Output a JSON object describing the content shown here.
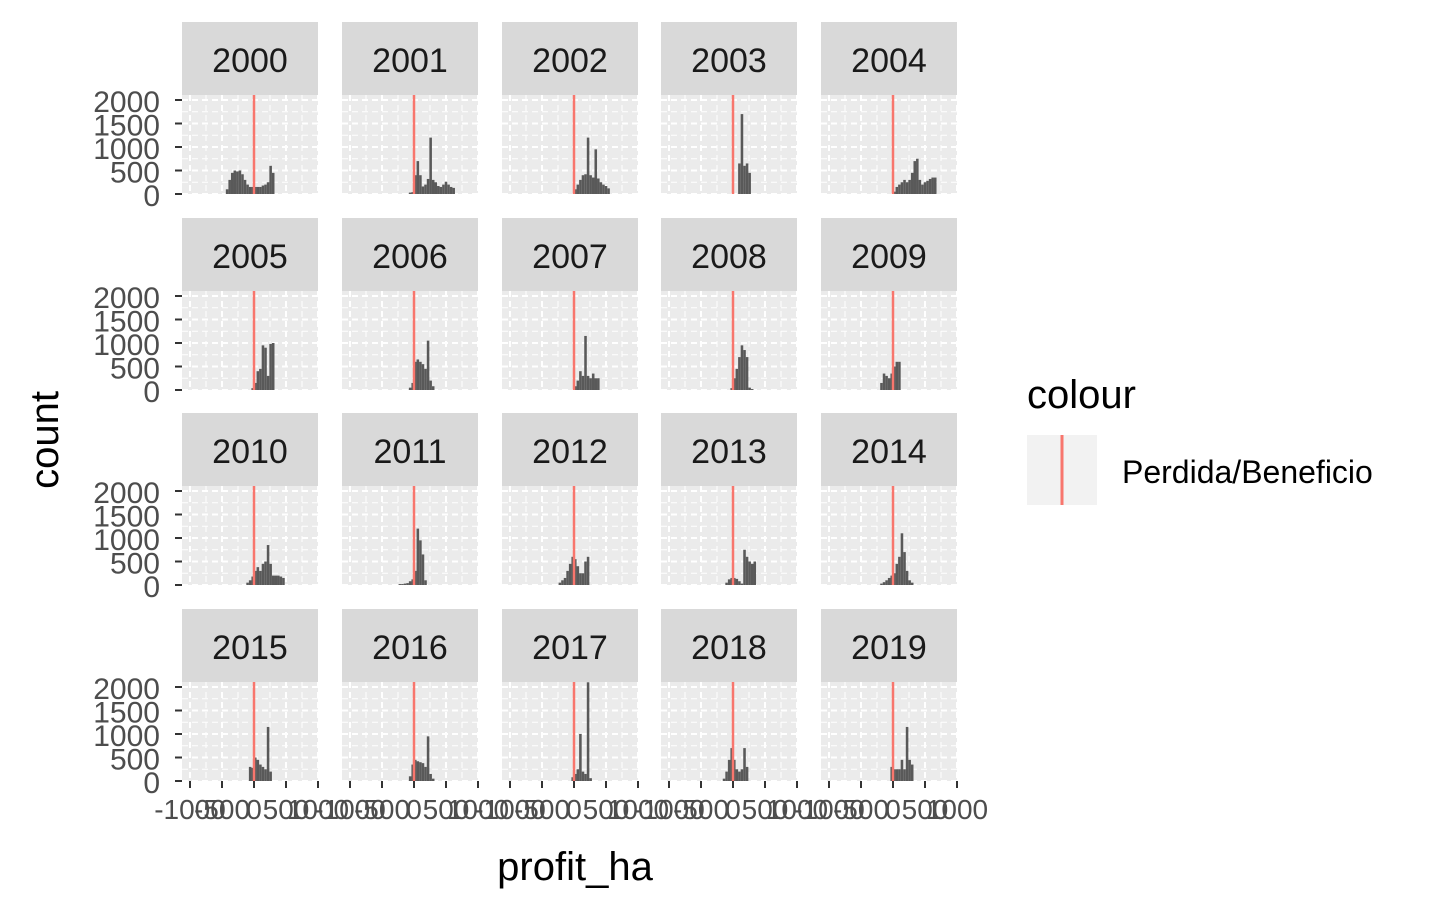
{
  "chart_data": {
    "type": "bar",
    "chart_kind": "faceted histogram",
    "x_label": "profit_ha",
    "y_label": "count",
    "x_tick_labels": [
      "-1000",
      "-500",
      "0",
      "500",
      "1000"
    ],
    "x_range": [
      -1000,
      1000
    ],
    "y_tick_labels": [
      "0",
      "500",
      "1000",
      "1500",
      "2000"
    ],
    "y_range": [
      0,
      2000
    ],
    "grid": true,
    "reference_line": {
      "x": 0,
      "color": "#F8766D"
    },
    "bin_width": 40,
    "legend": {
      "title": "colour",
      "position": "right",
      "items": [
        {
          "label": "Perdida/Beneficio",
          "color": "#F8766D"
        }
      ]
    },
    "bar_color": "#595959",
    "facets": [
      {
        "label": "2000",
        "bins": [
          [
            -420,
            100
          ],
          [
            -380,
            300
          ],
          [
            -340,
            450
          ],
          [
            -300,
            500
          ],
          [
            -260,
            480
          ],
          [
            -220,
            500
          ],
          [
            -180,
            420
          ],
          [
            -140,
            300
          ],
          [
            -100,
            200
          ],
          [
            -60,
            150
          ],
          [
            -20,
            150
          ],
          [
            20,
            150
          ],
          [
            60,
            150
          ],
          [
            100,
            150
          ],
          [
            140,
            180
          ],
          [
            180,
            200
          ],
          [
            220,
            250
          ],
          [
            260,
            600
          ],
          [
            300,
            450
          ]
        ]
      },
      {
        "label": "2001",
        "bins": [
          [
            -60,
            30
          ],
          [
            -20,
            40
          ],
          [
            20,
            400
          ],
          [
            60,
            700
          ],
          [
            100,
            400
          ],
          [
            140,
            160
          ],
          [
            180,
            200
          ],
          [
            220,
            320
          ],
          [
            260,
            1200
          ],
          [
            300,
            300
          ],
          [
            340,
            250
          ],
          [
            380,
            170
          ],
          [
            420,
            150
          ],
          [
            460,
            200
          ],
          [
            500,
            260
          ],
          [
            540,
            200
          ],
          [
            580,
            150
          ],
          [
            620,
            130
          ]
        ]
      },
      {
        "label": "2002",
        "bins": [
          [
            20,
            100
          ],
          [
            60,
            200
          ],
          [
            100,
            300
          ],
          [
            140,
            400
          ],
          [
            180,
            420
          ],
          [
            220,
            1200
          ],
          [
            260,
            400
          ],
          [
            300,
            350
          ],
          [
            340,
            950
          ],
          [
            380,
            330
          ],
          [
            420,
            250
          ],
          [
            460,
            200
          ],
          [
            500,
            170
          ],
          [
            540,
            120
          ]
        ]
      },
      {
        "label": "2003",
        "bins": [
          [
            100,
            650
          ],
          [
            140,
            1700
          ],
          [
            180,
            600
          ],
          [
            220,
            650
          ],
          [
            260,
            450
          ]
        ]
      },
      {
        "label": "2004",
        "bins": [
          [
            20,
            50
          ],
          [
            60,
            150
          ],
          [
            100,
            200
          ],
          [
            140,
            250
          ],
          [
            180,
            300
          ],
          [
            220,
            250
          ],
          [
            260,
            300
          ],
          [
            300,
            450
          ],
          [
            340,
            700
          ],
          [
            380,
            750
          ],
          [
            420,
            300
          ],
          [
            460,
            200
          ],
          [
            500,
            250
          ],
          [
            540,
            280
          ],
          [
            580,
            320
          ],
          [
            620,
            350
          ],
          [
            660,
            350
          ]
        ]
      },
      {
        "label": "2005",
        "bins": [
          [
            -20,
            40
          ],
          [
            20,
            150
          ],
          [
            60,
            400
          ],
          [
            100,
            450
          ],
          [
            140,
            950
          ],
          [
            180,
            900
          ],
          [
            220,
            300
          ],
          [
            260,
            980
          ],
          [
            300,
            1000
          ]
        ]
      },
      {
        "label": "2006",
        "bins": [
          [
            -60,
            50
          ],
          [
            -20,
            150
          ],
          [
            20,
            600
          ],
          [
            60,
            650
          ],
          [
            100,
            600
          ],
          [
            140,
            550
          ],
          [
            180,
            450
          ],
          [
            220,
            1050
          ],
          [
            260,
            200
          ],
          [
            300,
            80
          ]
        ]
      },
      {
        "label": "2007",
        "bins": [
          [
            20,
            80
          ],
          [
            60,
            200
          ],
          [
            100,
            400
          ],
          [
            140,
            300
          ],
          [
            180,
            1150
          ],
          [
            220,
            300
          ],
          [
            260,
            250
          ],
          [
            300,
            350
          ],
          [
            340,
            250
          ],
          [
            380,
            250
          ]
        ]
      },
      {
        "label": "2008",
        "bins": [
          [
            -20,
            40
          ],
          [
            20,
            250
          ],
          [
            60,
            450
          ],
          [
            100,
            700
          ],
          [
            140,
            950
          ],
          [
            180,
            850
          ],
          [
            220,
            700
          ],
          [
            260,
            50
          ],
          [
            300,
            20
          ]
        ]
      },
      {
        "label": "2009",
        "bins": [
          [
            -180,
            150
          ],
          [
            -140,
            350
          ],
          [
            -100,
            300
          ],
          [
            -60,
            250
          ],
          [
            -20,
            350
          ],
          [
            20,
            500
          ],
          [
            60,
            600
          ],
          [
            100,
            600
          ]
        ]
      },
      {
        "label": "2010",
        "bins": [
          [
            -100,
            50
          ],
          [
            -60,
            100
          ],
          [
            -20,
            180
          ],
          [
            20,
            300
          ],
          [
            60,
            380
          ],
          [
            100,
            300
          ],
          [
            140,
            450
          ],
          [
            180,
            500
          ],
          [
            220,
            850
          ],
          [
            260,
            450
          ],
          [
            300,
            200
          ],
          [
            340,
            200
          ],
          [
            380,
            200
          ],
          [
            420,
            180
          ],
          [
            460,
            150
          ]
        ]
      },
      {
        "label": "2011",
        "bins": [
          [
            -220,
            20
          ],
          [
            -180,
            20
          ],
          [
            -140,
            30
          ],
          [
            -100,
            40
          ],
          [
            -60,
            80
          ],
          [
            -20,
            120
          ],
          [
            20,
            300
          ],
          [
            60,
            1200
          ],
          [
            100,
            950
          ],
          [
            140,
            650
          ],
          [
            180,
            100
          ]
        ]
      },
      {
        "label": "2012",
        "bins": [
          [
            -220,
            50
          ],
          [
            -180,
            100
          ],
          [
            -140,
            150
          ],
          [
            -100,
            300
          ],
          [
            -60,
            450
          ],
          [
            -20,
            600
          ],
          [
            20,
            550
          ],
          [
            60,
            400
          ],
          [
            100,
            250
          ],
          [
            140,
            250
          ],
          [
            180,
            500
          ],
          [
            220,
            600
          ]
        ]
      },
      {
        "label": "2013",
        "bins": [
          [
            -100,
            50
          ],
          [
            -60,
            120
          ],
          [
            -20,
            150
          ],
          [
            20,
            150
          ],
          [
            60,
            130
          ],
          [
            100,
            80
          ],
          [
            140,
            30
          ],
          [
            180,
            750
          ],
          [
            220,
            600
          ],
          [
            260,
            500
          ],
          [
            300,
            450
          ],
          [
            340,
            500
          ]
        ]
      },
      {
        "label": "2014",
        "bins": [
          [
            -180,
            30
          ],
          [
            -140,
            60
          ],
          [
            -100,
            100
          ],
          [
            -60,
            150
          ],
          [
            -20,
            200
          ],
          [
            20,
            250
          ],
          [
            60,
            450
          ],
          [
            100,
            600
          ],
          [
            140,
            1100
          ],
          [
            180,
            700
          ],
          [
            220,
            300
          ],
          [
            260,
            100
          ],
          [
            300,
            50
          ]
        ]
      },
      {
        "label": "2015",
        "bins": [
          [
            -60,
            300
          ],
          [
            -20,
            280
          ],
          [
            20,
            500
          ],
          [
            60,
            450
          ],
          [
            100,
            350
          ],
          [
            140,
            300
          ],
          [
            180,
            250
          ],
          [
            220,
            1150
          ],
          [
            260,
            200
          ]
        ]
      },
      {
        "label": "2016",
        "bins": [
          [
            -60,
            100
          ],
          [
            -20,
            350
          ],
          [
            20,
            450
          ],
          [
            60,
            420
          ],
          [
            100,
            400
          ],
          [
            140,
            380
          ],
          [
            180,
            300
          ],
          [
            220,
            950
          ],
          [
            260,
            150
          ],
          [
            300,
            50
          ]
        ]
      },
      {
        "label": "2017",
        "bins": [
          [
            -20,
            80
          ],
          [
            20,
            150
          ],
          [
            60,
            250
          ],
          [
            100,
            1000
          ],
          [
            140,
            200
          ],
          [
            180,
            150
          ],
          [
            220,
            2100
          ],
          [
            260,
            60
          ]
        ]
      },
      {
        "label": "2018",
        "bins": [
          [
            -140,
            50
          ],
          [
            -100,
            200
          ],
          [
            -60,
            450
          ],
          [
            -20,
            700
          ],
          [
            20,
            450
          ],
          [
            60,
            250
          ],
          [
            100,
            200
          ],
          [
            140,
            250
          ],
          [
            180,
            700
          ],
          [
            220,
            300
          ]
        ]
      },
      {
        "label": "2019",
        "bins": [
          [
            -20,
            300
          ],
          [
            20,
            250
          ],
          [
            60,
            250
          ],
          [
            100,
            250
          ],
          [
            140,
            450
          ],
          [
            180,
            250
          ],
          [
            220,
            1150
          ],
          [
            260,
            450
          ],
          [
            300,
            350
          ]
        ]
      }
    ]
  }
}
